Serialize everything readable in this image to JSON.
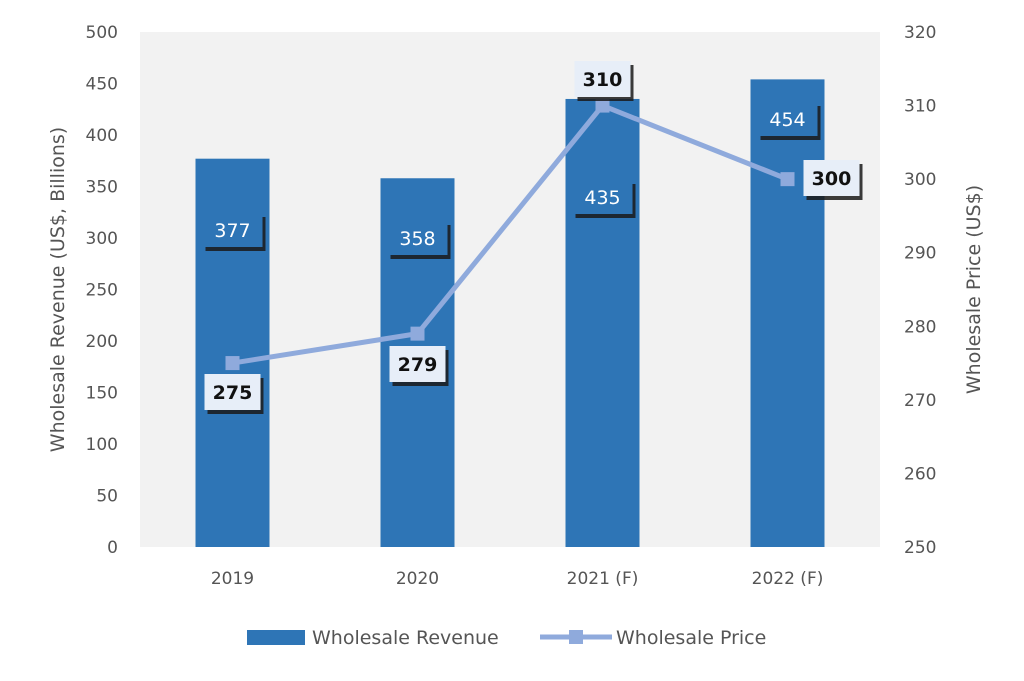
{
  "colors": {
    "bar": "#2e75b6",
    "line": "#8faadc",
    "plot_bg": "#f2f2f2",
    "bar_label_bg": "#2e75b6",
    "line_label_bg": "#e7eef8"
  },
  "chart_data": {
    "type": "bar",
    "combo": "bar+line (dual y-axis)",
    "categories": [
      "2019",
      "2020",
      "2021 (F)",
      "2022 (F)"
    ],
    "series": [
      {
        "name": "Wholesale Revenue",
        "type": "bar",
        "axis": "left",
        "values": [
          377,
          358,
          435,
          454
        ],
        "labels": [
          "377",
          "358",
          "435",
          "454"
        ]
      },
      {
        "name": "Wholesale Price",
        "type": "line",
        "axis": "right",
        "marker": "square",
        "values": [
          275,
          279,
          310,
          300
        ],
        "labels": [
          "275",
          "279",
          "310",
          "300"
        ]
      }
    ],
    "ylabel": "Wholesale Revenue (US$, Billions)",
    "y2label": "Wholesale Price (US$)",
    "xlabel": "",
    "ylim": [
      0,
      500
    ],
    "y2lim": [
      250,
      320
    ],
    "y_ticks": [
      "0",
      "50",
      "100",
      "150",
      "200",
      "250",
      "300",
      "350",
      "400",
      "450",
      "500"
    ],
    "y2_ticks": [
      "250",
      "260",
      "270",
      "280",
      "290",
      "300",
      "310",
      "320"
    ],
    "grid": false,
    "legend": "bottom"
  }
}
